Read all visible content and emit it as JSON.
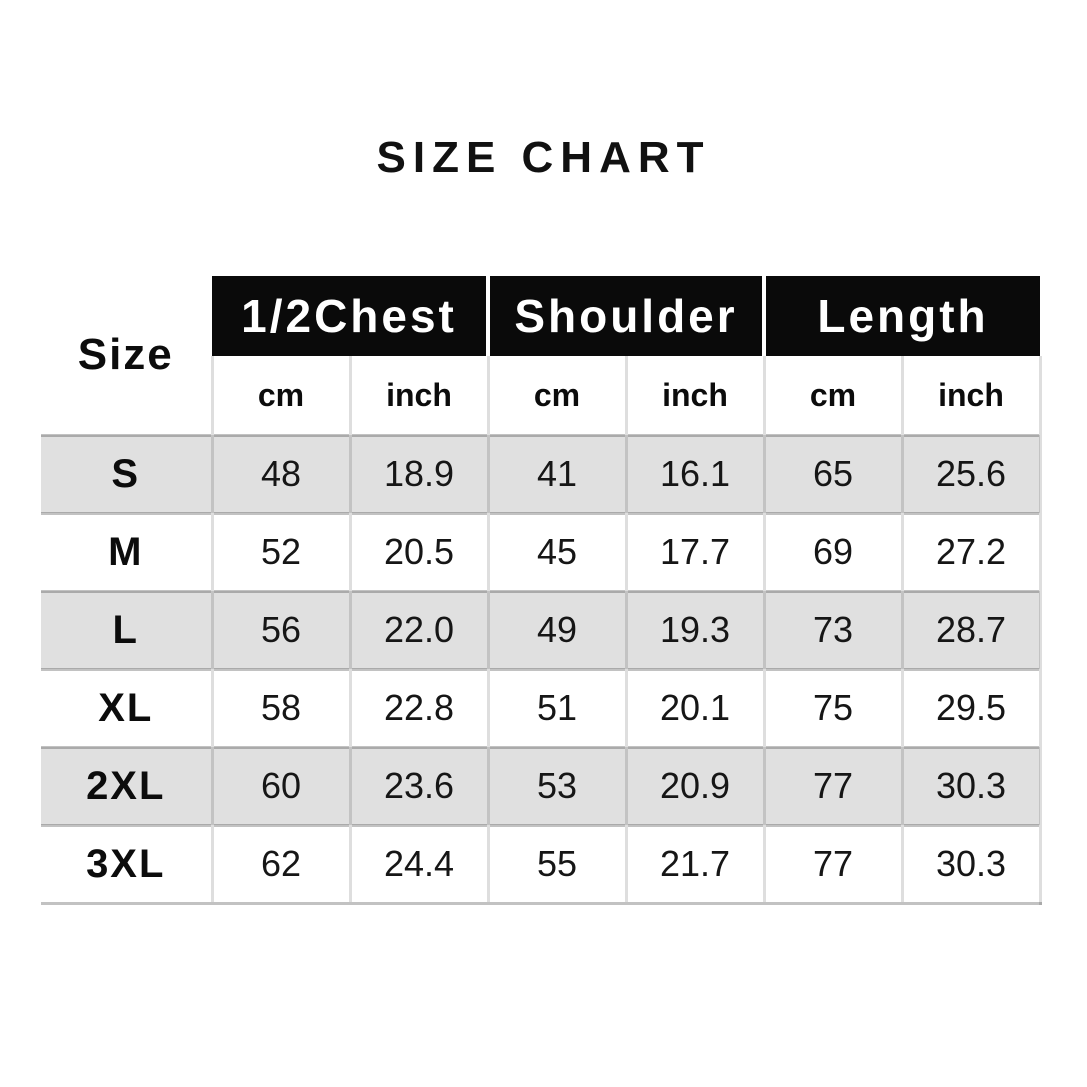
{
  "title": "SIZE CHART",
  "table": {
    "size_header": "Size",
    "groups": [
      {
        "label": "1/2Chest"
      },
      {
        "label": "Shoulder"
      },
      {
        "label": "Length"
      }
    ],
    "units": [
      "cm",
      "inch",
      "cm",
      "inch",
      "cm",
      "inch"
    ]
  },
  "colors": {
    "header_bg": "#0a0a0a",
    "header_text": "#ffffff",
    "zebra_row_bg": "#e0e0e0",
    "text": "#141414",
    "background": "#ffffff"
  },
  "chart_data": {
    "type": "table",
    "title": "SIZE CHART",
    "columns": [
      "Size",
      "1/2Chest cm",
      "1/2Chest inch",
      "Shoulder cm",
      "Shoulder inch",
      "Length cm",
      "Length inch"
    ],
    "rows": [
      [
        "S",
        "48",
        "18.9",
        "41",
        "16.1",
        "65",
        "25.6"
      ],
      [
        "M",
        "52",
        "20.5",
        "45",
        "17.7",
        "69",
        "27.2"
      ],
      [
        "L",
        "56",
        "22.0",
        "49",
        "19.3",
        "73",
        "28.7"
      ],
      [
        "XL",
        "58",
        "22.8",
        "51",
        "20.1",
        "75",
        "29.5"
      ],
      [
        "2XL",
        "60",
        "23.6",
        "53",
        "20.9",
        "77",
        "30.3"
      ],
      [
        "3XL",
        "62",
        "24.4",
        "55",
        "21.7",
        "77",
        "30.3"
      ]
    ]
  }
}
